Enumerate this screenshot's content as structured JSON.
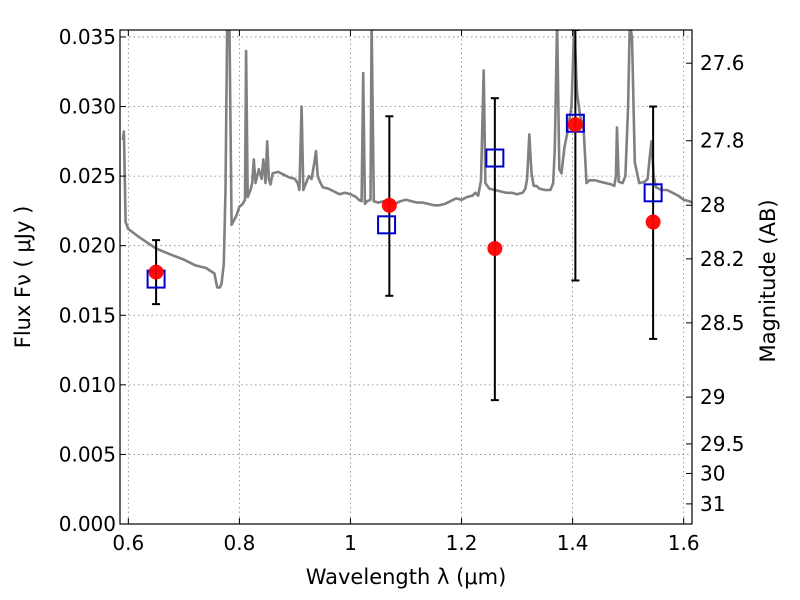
{
  "chart_data": {
    "type": "scatter",
    "xlabel": "Wavelength  λ (μm)",
    "ylabel": "Flux  Fν  ( μJy )",
    "ylabel_right": "Magnitude (AB)",
    "xlim": [
      0.585,
      1.615
    ],
    "ylim": [
      0.0,
      0.0355
    ],
    "grid": true,
    "x_ticks": [
      {
        "value": 0.6,
        "label": "0.6"
      },
      {
        "value": 0.8,
        "label": "0.8"
      },
      {
        "value": 1.0,
        "label": "1"
      },
      {
        "value": 1.2,
        "label": "1.2"
      },
      {
        "value": 1.4,
        "label": "1.4"
      },
      {
        "value": 1.6,
        "label": "1.6"
      }
    ],
    "y_ticks": [
      {
        "value": 0.0,
        "label": "0.000"
      },
      {
        "value": 0.005,
        "label": "0.005"
      },
      {
        "value": 0.01,
        "label": "0.010"
      },
      {
        "value": 0.015,
        "label": "0.015"
      },
      {
        "value": 0.02,
        "label": "0.020"
      },
      {
        "value": 0.025,
        "label": "0.025"
      },
      {
        "value": 0.03,
        "label": "0.030"
      },
      {
        "value": 0.035,
        "label": "0.035"
      }
    ],
    "y_right_ticks": [
      {
        "value": 27.6,
        "label": "27.6"
      },
      {
        "value": 27.8,
        "label": "27.8"
      },
      {
        "value": 28.0,
        "label": "28"
      },
      {
        "value": 28.2,
        "label": "28.2"
      },
      {
        "value": 28.5,
        "label": "28.5"
      },
      {
        "value": 29.0,
        "label": "29"
      },
      {
        "value": 29.5,
        "label": "29.5"
      },
      {
        "value": 30.0,
        "label": "30"
      },
      {
        "value": 31.0,
        "label": "31"
      }
    ],
    "colors": {
      "template": "#808080",
      "model_marker": "#0000cc",
      "observed_marker": "#ff0000",
      "errorbar": "#000000",
      "grid": "#808080"
    },
    "template_spectrum": [
      [
        0.59,
        0.0276
      ],
      [
        0.592,
        0.0282
      ],
      [
        0.595,
        0.0217
      ],
      [
        0.6,
        0.0212
      ],
      [
        0.62,
        0.0206
      ],
      [
        0.65,
        0.0198
      ],
      [
        0.68,
        0.0193
      ],
      [
        0.7,
        0.019
      ],
      [
        0.72,
        0.0186
      ],
      [
        0.74,
        0.0184
      ],
      [
        0.755,
        0.018
      ],
      [
        0.76,
        0.017
      ],
      [
        0.765,
        0.017
      ],
      [
        0.768,
        0.0173
      ],
      [
        0.772,
        0.0187
      ],
      [
        0.775,
        0.024
      ],
      [
        0.778,
        0.036
      ],
      [
        0.782,
        0.036
      ],
      [
        0.786,
        0.0215
      ],
      [
        0.79,
        0.0218
      ],
      [
        0.795,
        0.0222
      ],
      [
        0.8,
        0.0228
      ],
      [
        0.806,
        0.023
      ],
      [
        0.81,
        0.0233
      ],
      [
        0.812,
        0.034
      ],
      [
        0.815,
        0.0235
      ],
      [
        0.82,
        0.024
      ],
      [
        0.823,
        0.0245
      ],
      [
        0.826,
        0.0262
      ],
      [
        0.829,
        0.0245
      ],
      [
        0.832,
        0.025
      ],
      [
        0.835,
        0.0255
      ],
      [
        0.84,
        0.0248
      ],
      [
        0.843,
        0.0262
      ],
      [
        0.847,
        0.0245
      ],
      [
        0.85,
        0.0275
      ],
      [
        0.853,
        0.0248
      ],
      [
        0.856,
        0.0244
      ],
      [
        0.86,
        0.0252
      ],
      [
        0.87,
        0.0253
      ],
      [
        0.88,
        0.0251
      ],
      [
        0.89,
        0.0249
      ],
      [
        0.9,
        0.0248
      ],
      [
        0.905,
        0.0245
      ],
      [
        0.908,
        0.024
      ],
      [
        0.912,
        0.03
      ],
      [
        0.915,
        0.024
      ],
      [
        0.92,
        0.0245
      ],
      [
        0.925,
        0.025
      ],
      [
        0.93,
        0.0248
      ],
      [
        0.935,
        0.026
      ],
      [
        0.938,
        0.0268
      ],
      [
        0.941,
        0.025
      ],
      [
        0.945,
        0.0246
      ],
      [
        0.95,
        0.0242
      ],
      [
        0.96,
        0.0241
      ],
      [
        0.97,
        0.0239
      ],
      [
        0.98,
        0.0237
      ],
      [
        0.99,
        0.0238
      ],
      [
        1.0,
        0.0237
      ],
      [
        1.01,
        0.0235
      ],
      [
        1.015,
        0.0233
      ],
      [
        1.02,
        0.0232
      ],
      [
        1.023,
        0.0324
      ],
      [
        1.026,
        0.023
      ],
      [
        1.03,
        0.0232
      ],
      [
        1.036,
        0.0233
      ],
      [
        1.038,
        0.036
      ],
      [
        1.042,
        0.0232
      ],
      [
        1.05,
        0.0231
      ],
      [
        1.06,
        0.0232
      ],
      [
        1.07,
        0.0231
      ],
      [
        1.08,
        0.023
      ],
      [
        1.09,
        0.0232
      ],
      [
        1.1,
        0.0233
      ],
      [
        1.11,
        0.0232
      ],
      [
        1.12,
        0.0231
      ],
      [
        1.13,
        0.0231
      ],
      [
        1.14,
        0.023
      ],
      [
        1.15,
        0.0229
      ],
      [
        1.16,
        0.0229
      ],
      [
        1.17,
        0.023
      ],
      [
        1.18,
        0.0232
      ],
      [
        1.19,
        0.0234
      ],
      [
        1.2,
        0.0233
      ],
      [
        1.21,
        0.0235
      ],
      [
        1.22,
        0.0236
      ],
      [
        1.225,
        0.0238
      ],
      [
        1.23,
        0.0236
      ],
      [
        1.235,
        0.0247
      ],
      [
        1.24,
        0.0326
      ],
      [
        1.243,
        0.0245
      ],
      [
        1.25,
        0.0241
      ],
      [
        1.26,
        0.024
      ],
      [
        1.27,
        0.0239
      ],
      [
        1.28,
        0.0238
      ],
      [
        1.29,
        0.0238
      ],
      [
        1.3,
        0.0237
      ],
      [
        1.31,
        0.0238
      ],
      [
        1.315,
        0.0241
      ],
      [
        1.318,
        0.0248
      ],
      [
        1.322,
        0.028
      ],
      [
        1.326,
        0.0252
      ],
      [
        1.33,
        0.0243
      ],
      [
        1.335,
        0.0243
      ],
      [
        1.34,
        0.0241
      ],
      [
        1.35,
        0.024
      ],
      [
        1.36,
        0.024
      ],
      [
        1.365,
        0.0245
      ],
      [
        1.368,
        0.027
      ],
      [
        1.372,
        0.036
      ],
      [
        1.376,
        0.0255
      ],
      [
        1.38,
        0.0252
      ],
      [
        1.385,
        0.027
      ],
      [
        1.39,
        0.028
      ],
      [
        1.398,
        0.03
      ],
      [
        1.403,
        0.036
      ],
      [
        1.408,
        0.031
      ],
      [
        1.413,
        0.0295
      ],
      [
        1.42,
        0.0283
      ],
      [
        1.425,
        0.0245
      ],
      [
        1.43,
        0.0247
      ],
      [
        1.44,
        0.0247
      ],
      [
        1.45,
        0.0246
      ],
      [
        1.46,
        0.0245
      ],
      [
        1.47,
        0.0244
      ],
      [
        1.475,
        0.0243
      ],
      [
        1.478,
        0.025
      ],
      [
        1.48,
        0.0285
      ],
      [
        1.483,
        0.0246
      ],
      [
        1.49,
        0.0245
      ],
      [
        1.495,
        0.025
      ],
      [
        1.5,
        0.03
      ],
      [
        1.503,
        0.036
      ],
      [
        1.507,
        0.035
      ],
      [
        1.512,
        0.026
      ],
      [
        1.52,
        0.0245
      ],
      [
        1.53,
        0.0246
      ],
      [
        1.535,
        0.0248
      ],
      [
        1.538,
        0.026
      ],
      [
        1.542,
        0.0275
      ],
      [
        1.546,
        0.025
      ],
      [
        1.55,
        0.0242
      ],
      [
        1.56,
        0.024
      ],
      [
        1.57,
        0.024
      ],
      [
        1.58,
        0.0238
      ],
      [
        1.59,
        0.0236
      ],
      [
        1.6,
        0.0233
      ],
      [
        1.61,
        0.0232
      ],
      [
        1.615,
        0.0231
      ]
    ],
    "model_points": [
      {
        "x": 0.65,
        "y": 0.0176
      },
      {
        "x": 1.065,
        "y": 0.0215
      },
      {
        "x": 1.26,
        "y": 0.0263
      },
      {
        "x": 1.405,
        "y": 0.0288
      },
      {
        "x": 1.545,
        "y": 0.0238
      }
    ],
    "observed_points": [
      {
        "x": 0.65,
        "y": 0.0181,
        "err_low": 0.0158,
        "err_high": 0.0204
      },
      {
        "x": 1.07,
        "y": 0.0229,
        "err_low": 0.0164,
        "err_high": 0.0293
      },
      {
        "x": 1.26,
        "y": 0.0198,
        "err_low": 0.0089,
        "err_high": 0.0306
      },
      {
        "x": 1.405,
        "y": 0.0287,
        "err_low": 0.0175,
        "err_high": 0.0355
      },
      {
        "x": 1.545,
        "y": 0.0217,
        "err_low": 0.0133,
        "err_high": 0.03
      }
    ]
  }
}
